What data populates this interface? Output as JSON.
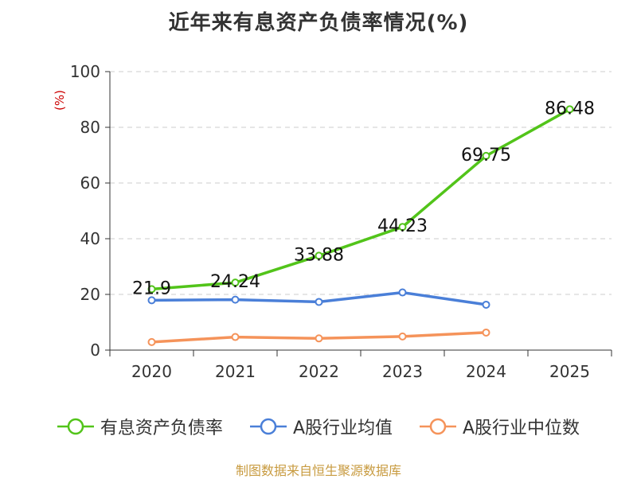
{
  "chart_data": {
    "type": "line",
    "title": "近年来有息资产负债率情况(%)",
    "ylabel": "(%)",
    "xlabel": "",
    "categories": [
      "2020",
      "2021",
      "2022",
      "2023",
      "2024",
      "2025"
    ],
    "ylim": [
      0,
      100
    ],
    "yticks": [
      0,
      20,
      40,
      60,
      80,
      100
    ],
    "grid": true,
    "legend_position": "bottom",
    "series": [
      {
        "name": "有息资产负债率",
        "color": "#52c41a",
        "values": [
          21.9,
          24.24,
          33.88,
          44.23,
          69.75,
          86.48
        ],
        "labels": [
          "21.9",
          "24.24",
          "33.88",
          "44.23",
          "69.75",
          "86.48"
        ]
      },
      {
        "name": "A股行业均值",
        "color": "#4a7fd8",
        "values": [
          17.9,
          18.1,
          17.3,
          20.7,
          16.3,
          null
        ]
      },
      {
        "name": "A股行业中位数",
        "color": "#f5935a",
        "values": [
          2.9,
          4.7,
          4.2,
          4.9,
          6.3,
          null
        ]
      }
    ]
  },
  "footer": {
    "source": "制图数据来自恒生聚源数据库"
  }
}
